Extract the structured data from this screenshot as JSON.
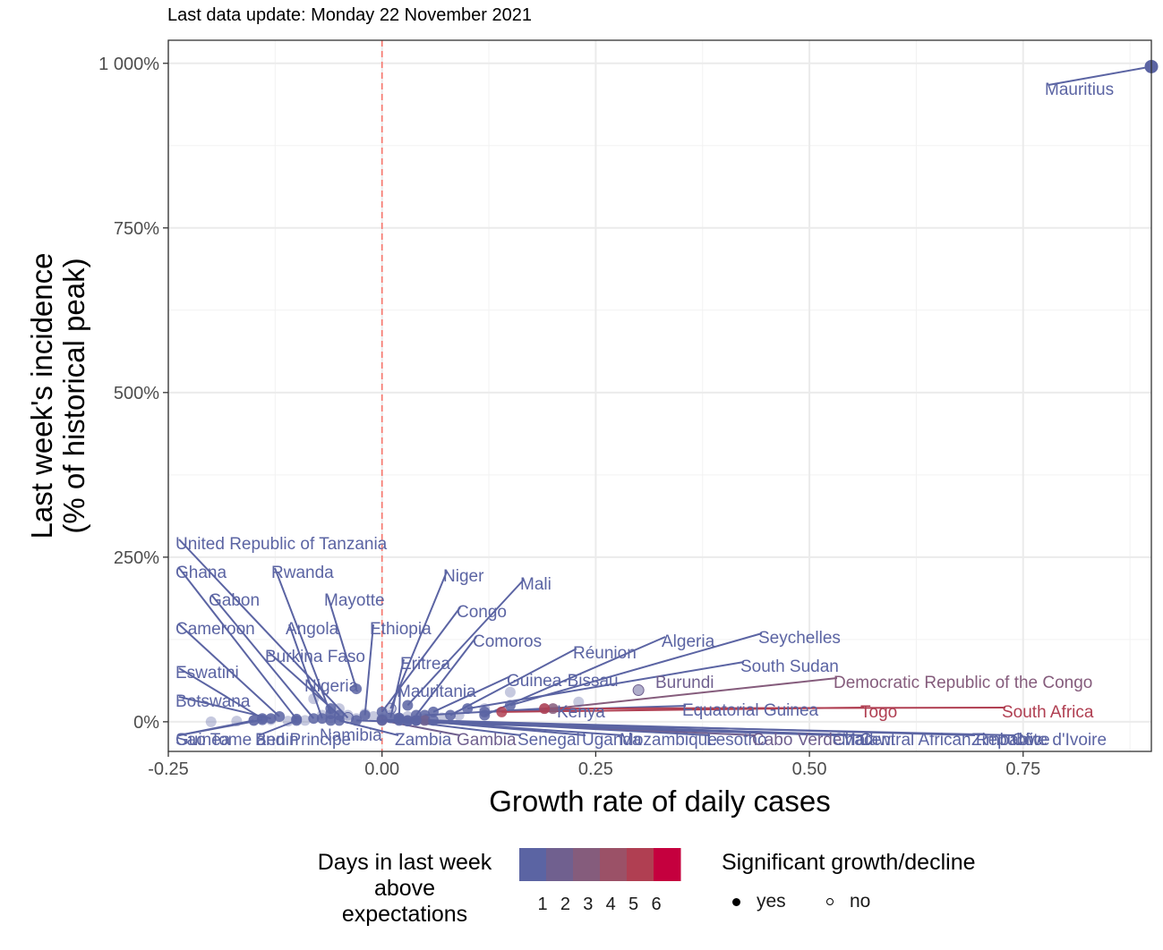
{
  "subtitle": "Last data update: Monday 22 November 2021",
  "chart_data": {
    "type": "scatter",
    "xlabel": "Growth rate of daily cases",
    "ylabel_line1": "Last week's incidence",
    "ylabel_line2": "(% of historical peak)",
    "xlim": [
      -0.25,
      0.9
    ],
    "ylim": [
      -0.45,
      10.35
    ],
    "x_ticks": [
      -0.25,
      0,
      0.25,
      0.5,
      0.75
    ],
    "x_tick_labels": [
      "-0.25",
      "0.00",
      "0.25",
      "0.50",
      "0.75"
    ],
    "y_ticks": [
      0,
      2.5,
      5,
      7.5,
      10
    ],
    "y_tick_labels": [
      "0%",
      "250%",
      "500%",
      "750%",
      "1 000%"
    ],
    "reference_line_x": 0,
    "reference_line_color": "#F8766D",
    "grid": true,
    "color_scale": {
      "title_line1": "Days in last week",
      "title_line2": "above",
      "title_line3": "expectations",
      "bins": [
        1,
        2,
        3,
        4,
        5,
        6
      ],
      "bin_labels": [
        "1",
        "2",
        "3",
        "4",
        "5",
        "6"
      ],
      "colors": [
        "#5B64A3",
        "#70608F",
        "#855C7C",
        "#9B5167",
        "#B03F52",
        "#C5003E"
      ]
    },
    "shape_legend": {
      "title": "Significant growth/decline",
      "items": [
        {
          "label": "yes",
          "filled": true
        },
        {
          "label": "no",
          "filled": false
        }
      ]
    },
    "points": [
      {
        "label": "Mauritius",
        "x": 0.9,
        "y": 9.95,
        "days": 1,
        "sig": true
      },
      {
        "label": "United Republic of Tanzania",
        "x": -0.04,
        "y": 0.06,
        "days": 1,
        "sig": false
      },
      {
        "label": "Ghana",
        "x": -0.1,
        "y": 0.04,
        "days": 1,
        "sig": true
      },
      {
        "label": "Rwanda",
        "x": -0.06,
        "y": 0.12,
        "days": 1,
        "sig": true
      },
      {
        "label": "Gabon",
        "x": -0.08,
        "y": 0.05,
        "days": 1,
        "sig": true
      },
      {
        "label": "Mayotte",
        "x": -0.03,
        "y": 0.5,
        "days": 1,
        "sig": true
      },
      {
        "label": "Cameroon",
        "x": -0.12,
        "y": 0.08,
        "days": 1,
        "sig": true
      },
      {
        "label": "Angola",
        "x": -0.07,
        "y": 0.05,
        "days": 1,
        "sig": true
      },
      {
        "label": "Ethiopia",
        "x": -0.02,
        "y": 0.1,
        "days": 1,
        "sig": true
      },
      {
        "label": "Niger",
        "x": 0.01,
        "y": 0.2,
        "days": 1,
        "sig": false
      },
      {
        "label": "Mali",
        "x": 0.03,
        "y": 0.25,
        "days": 1,
        "sig": true
      },
      {
        "label": "Congo",
        "x": 0.0,
        "y": 0.15,
        "days": 1,
        "sig": true
      },
      {
        "label": "Comoros",
        "x": 0.04,
        "y": 0.1,
        "days": 1,
        "sig": true
      },
      {
        "label": "Burkina Faso",
        "x": -0.05,
        "y": 0.1,
        "days": 1,
        "sig": true
      },
      {
        "label": "Eritrea",
        "x": 0.01,
        "y": 0.06,
        "days": 1,
        "sig": true
      },
      {
        "label": "Eswatini",
        "x": -0.14,
        "y": 0.05,
        "days": 1,
        "sig": true
      },
      {
        "label": "Nigeria",
        "x": -0.06,
        "y": 0.2,
        "days": 1,
        "sig": true
      },
      {
        "label": "Botswana",
        "x": -0.13,
        "y": 0.05,
        "days": 1,
        "sig": true
      },
      {
        "label": "Mauritania",
        "x": 0.02,
        "y": 0.06,
        "days": 1,
        "sig": true
      },
      {
        "label": "Réunion",
        "x": 0.08,
        "y": 0.1,
        "days": 1,
        "sig": true
      },
      {
        "label": "Algeria",
        "x": 0.12,
        "y": 0.1,
        "days": 1,
        "sig": true
      },
      {
        "label": "Seychelles",
        "x": 0.15,
        "y": 0.25,
        "days": 1,
        "sig": true
      },
      {
        "label": "Guinea-Bissau",
        "x": 0.06,
        "y": 0.15,
        "days": 1,
        "sig": true
      },
      {
        "label": "South Sudan",
        "x": 0.1,
        "y": 0.2,
        "days": 1,
        "sig": true
      },
      {
        "label": "Burundi",
        "x": 0.3,
        "y": 0.48,
        "days": 2,
        "sig": false
      },
      {
        "label": "Democratic Republic of the Congo",
        "x": 0.2,
        "y": 0.2,
        "days": 3,
        "sig": true
      },
      {
        "label": "Kenya",
        "x": 0.05,
        "y": 0.1,
        "days": 1,
        "sig": true
      },
      {
        "label": "Equatorial Guinea",
        "x": 0.12,
        "y": 0.15,
        "days": 1,
        "sig": true
      },
      {
        "label": "Togo",
        "x": 0.14,
        "y": 0.15,
        "days": 5,
        "sig": true
      },
      {
        "label": "South Africa",
        "x": 0.19,
        "y": 0.2,
        "days": 5,
        "sig": true
      },
      {
        "label": "Namibia",
        "x": -0.06,
        "y": 0.02,
        "days": 1,
        "sig": true
      },
      {
        "label": "Sao Tome and Principe",
        "x": -0.15,
        "y": 0.02,
        "days": 1,
        "sig": true
      },
      {
        "label": "Guinea",
        "x": -0.14,
        "y": 0.03,
        "days": 1,
        "sig": true
      },
      {
        "label": "Benin",
        "x": -0.1,
        "y": 0.02,
        "days": 1,
        "sig": true
      },
      {
        "label": "Zambia",
        "x": -0.05,
        "y": 0.02,
        "days": 1,
        "sig": true
      },
      {
        "label": "Gambia",
        "x": 0.0,
        "y": 0.02,
        "days": 2,
        "sig": true
      },
      {
        "label": "Senegal",
        "x": 0.02,
        "y": 0.02,
        "days": 1,
        "sig": true
      },
      {
        "label": "Uganda",
        "x": 0.04,
        "y": 0.02,
        "days": 1,
        "sig": true
      },
      {
        "label": "Mozambique",
        "x": 0.03,
        "y": 0.02,
        "days": 1,
        "sig": true
      },
      {
        "label": "Lesotho",
        "x": 0.02,
        "y": 0.05,
        "days": 1,
        "sig": true
      },
      {
        "label": "Cabo Verde",
        "x": 0.05,
        "y": 0.02,
        "days": 2,
        "sig": true
      },
      {
        "label": "Chad",
        "x": -0.03,
        "y": 0.02,
        "days": 1,
        "sig": true
      },
      {
        "label": "Malawi",
        "x": 0.0,
        "y": 0.03,
        "days": 1,
        "sig": true
      },
      {
        "label": "Central African Republic",
        "x": 0.04,
        "y": 0.02,
        "days": 1,
        "sig": true
      },
      {
        "label": "Zimbabwe",
        "x": 0.06,
        "y": 0.02,
        "days": 1,
        "sig": true
      },
      {
        "label": "Côte d'Ivoire",
        "x": 0.03,
        "y": 0.01,
        "days": 1,
        "sig": true
      }
    ]
  }
}
